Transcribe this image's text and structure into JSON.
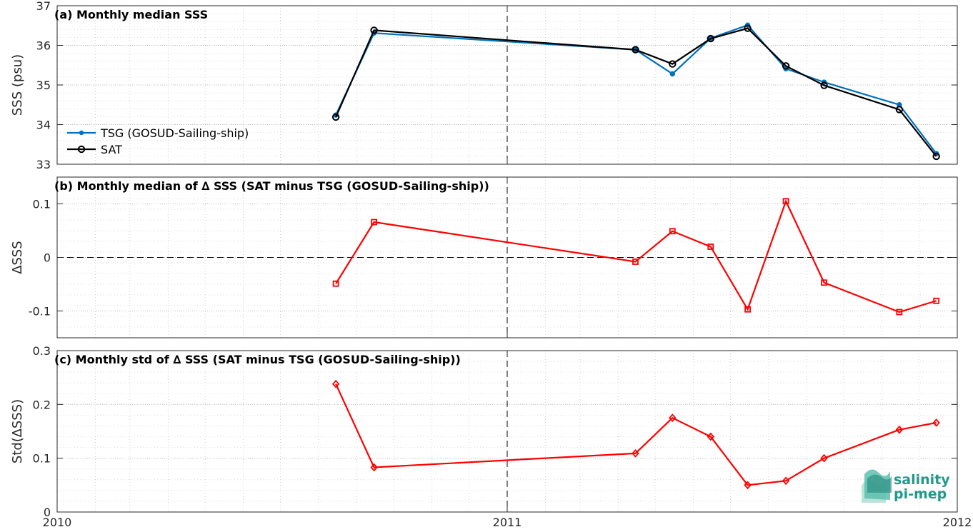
{
  "chart_data": [
    {
      "type": "line",
      "title": "(a) Monthly median SSS",
      "ylabel": "SSS (psu)",
      "ylim": [
        33,
        37
      ],
      "yticks": [
        33,
        34,
        35,
        36,
        37
      ],
      "xlim": [
        "2010-01-01",
        "2012-01-01"
      ],
      "xticks": [
        {
          "date": "2010-01-01",
          "label": "2010"
        },
        {
          "date": "2011-01-01",
          "label": "2011"
        },
        {
          "date": "2012-01-01",
          "label": "2012"
        }
      ],
      "grid": true,
      "legend_placement": "lower-left",
      "series": [
        {
          "name": "TSG (GOSUD-Sailing-ship)",
          "color": "#0072bd",
          "marker": "dot",
          "x": [
            "2010-08-15",
            "2010-09-15",
            "2011-04-15",
            "2011-05-15",
            "2011-06-15",
            "2011-07-15",
            "2011-08-15",
            "2011-09-15",
            "2011-11-15",
            "2011-12-15"
          ],
          "values": [
            34.24,
            36.31,
            35.89,
            35.28,
            36.18,
            36.51,
            35.41,
            35.07,
            34.5,
            33.27
          ]
        },
        {
          "name": "SAT",
          "color": "#000000",
          "marker": "circle",
          "x": [
            "2010-08-15",
            "2010-09-15",
            "2011-04-15",
            "2011-05-15",
            "2011-06-15",
            "2011-07-15",
            "2011-08-15",
            "2011-09-15",
            "2011-11-15",
            "2011-12-15"
          ],
          "values": [
            34.19,
            36.38,
            35.89,
            35.53,
            36.17,
            36.43,
            35.48,
            34.99,
            34.38,
            33.2
          ]
        }
      ]
    },
    {
      "type": "line",
      "title": "(b) Monthly median of ∆ SSS (SAT minus TSG (GOSUD-Sailing-ship))",
      "ylabel": "∆SSS",
      "ylim": [
        -0.15,
        0.15
      ],
      "yticks": [
        -0.1,
        0,
        0.1
      ],
      "ytick_labels": [
        "-0.1",
        "0",
        "0.1"
      ],
      "xlim": [
        "2010-01-01",
        "2012-01-01"
      ],
      "grid": true,
      "zero_line": true,
      "series": [
        {
          "color": "#ff0000",
          "marker": "square",
          "x": [
            "2010-08-15",
            "2010-09-15",
            "2011-04-15",
            "2011-05-15",
            "2011-06-15",
            "2011-07-15",
            "2011-08-15",
            "2011-09-15",
            "2011-11-15",
            "2011-12-15"
          ],
          "values": [
            -0.049,
            0.066,
            -0.008,
            0.049,
            0.02,
            -0.097,
            0.105,
            -0.047,
            -0.102,
            -0.081
          ]
        }
      ]
    },
    {
      "type": "line",
      "title": "(c) Monthly std of ∆ SSS (SAT minus TSG (GOSUD-Sailing-ship))",
      "ylabel": "Std(∆SSS)",
      "ylim": [
        0,
        0.3
      ],
      "yticks": [
        0,
        0.1,
        0.2,
        0.3
      ],
      "ytick_labels": [
        "0",
        "0.1",
        "0.2",
        "0.3"
      ],
      "xlim": [
        "2010-01-01",
        "2012-01-01"
      ],
      "xticks": [
        {
          "date": "2010-01-01",
          "label": "2010"
        },
        {
          "date": "2011-01-01",
          "label": "2011"
        },
        {
          "date": "2012-01-01",
          "label": "2012"
        }
      ],
      "grid": true,
      "series": [
        {
          "color": "#ff0000",
          "marker": "diamond",
          "x": [
            "2010-08-15",
            "2010-09-15",
            "2011-04-15",
            "2011-05-15",
            "2011-06-15",
            "2011-07-15",
            "2011-08-15",
            "2011-09-15",
            "2011-11-15",
            "2011-12-15"
          ],
          "values": [
            0.238,
            0.083,
            0.109,
            0.175,
            0.14,
            0.05,
            0.058,
            0.1,
            0.153,
            0.166
          ]
        }
      ]
    }
  ],
  "logo": {
    "line1": "salinity",
    "line2": "pi-mep",
    "color": "#1f9a8a"
  }
}
